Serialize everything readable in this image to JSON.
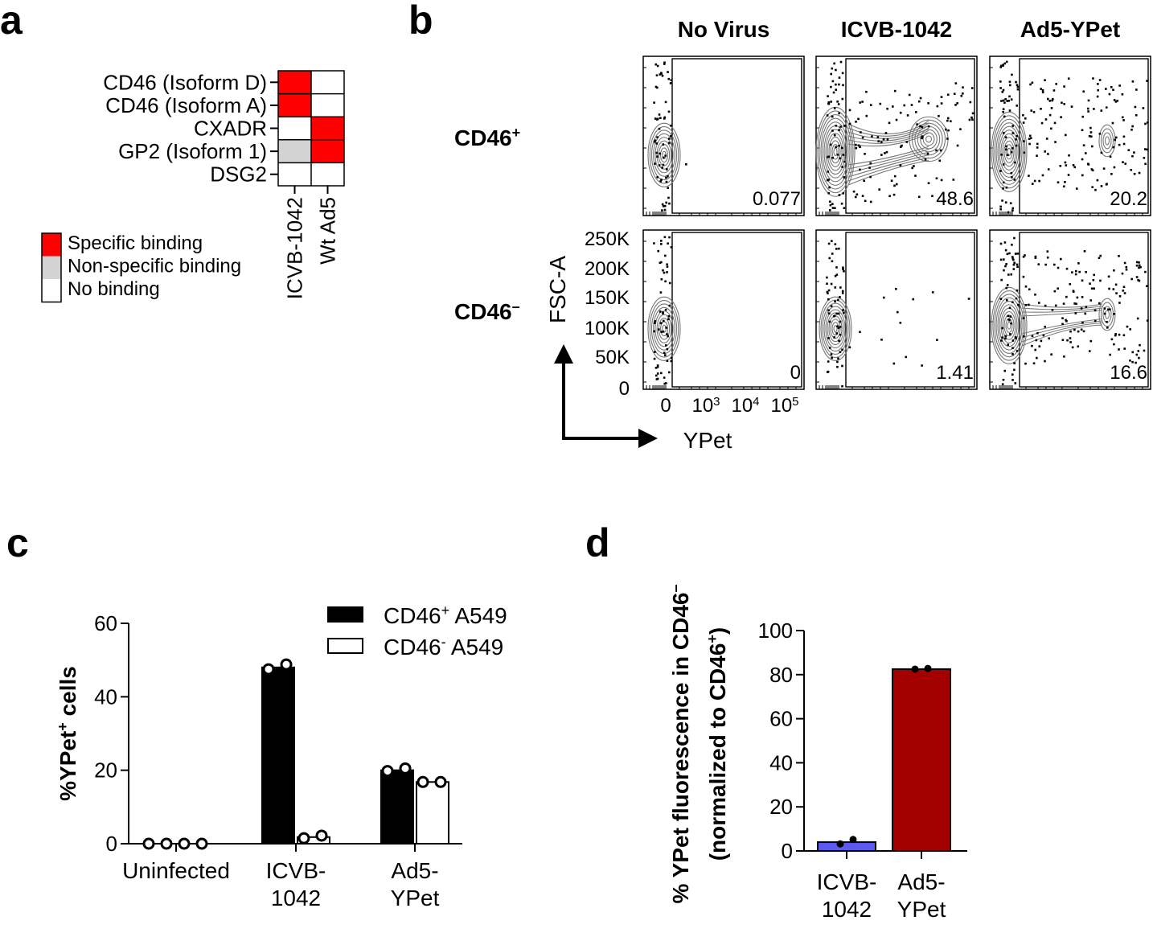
{
  "panel_labels": {
    "a": "a",
    "b": "b",
    "c": "c",
    "d": "d"
  },
  "colors": {
    "specific": "#ff0000",
    "nonspecific": "#d3d3d3",
    "none": "#ffffff",
    "icvb_bar_d": "#5a5aee",
    "ad5_bar_d": "#a50000",
    "contour": "#777777"
  },
  "chart_data": [
    {
      "panel": "a",
      "type": "heatmap",
      "rows": [
        "CD46 (Isoform D)",
        "CD46 (Isoform A)",
        "CXADR",
        "GP2 (Isoform 1)",
        "DSG2"
      ],
      "columns": [
        "ICVB-1042",
        "Wt Ad5"
      ],
      "cells": [
        [
          "specific",
          "none"
        ],
        [
          "specific",
          "none"
        ],
        [
          "none",
          "specific"
        ],
        [
          "nonspecific",
          "specific"
        ],
        [
          "none",
          "none"
        ]
      ],
      "legend": [
        {
          "key": "specific",
          "label": "Specific binding"
        },
        {
          "key": "nonspecific",
          "label": "Non-specific binding"
        },
        {
          "key": "none",
          "label": "No binding"
        }
      ]
    },
    {
      "panel": "b",
      "type": "scatter",
      "columns": [
        "No Virus",
        "ICVB-1042",
        "Ad5-YPet"
      ],
      "rows": [
        {
          "label": "CD46",
          "sup": "+",
          "percentages": [
            "0.077",
            "48.6",
            "20.2"
          ]
        },
        {
          "label": "CD46",
          "sup": "–",
          "percentages": [
            "0",
            "1.41",
            "16.6"
          ]
        }
      ],
      "ylabel": "FSC-A",
      "xlabel": "YPet",
      "yticks": [
        "250K",
        "200K",
        "150K",
        "100K",
        "50K",
        "0"
      ],
      "xticks": [
        {
          "base": "0",
          "exp": ""
        },
        {
          "base": "10",
          "exp": "3"
        },
        {
          "base": "10",
          "exp": "4"
        },
        {
          "base": "10",
          "exp": "5"
        }
      ],
      "ylim": [
        0,
        262144
      ]
    },
    {
      "panel": "c",
      "type": "bar",
      "ylabel": {
        "pre": "%YPet",
        "sup": "+",
        "post": " cells"
      },
      "categories": [
        {
          "line1": "Uninfected",
          "line2": ""
        },
        {
          "line1": "ICVB-",
          "line2": "1042"
        },
        {
          "line1": "Ad5-",
          "line2": "YPet"
        }
      ],
      "ylim": [
        0,
        60
      ],
      "yticks": [
        "0",
        "20",
        "40",
        "60"
      ],
      "series": [
        {
          "name": "CD46",
          "sup": "+",
          "suffix": " A549",
          "fill": "#000000",
          "values": [
            0,
            48,
            20
          ],
          "points": [
            [
              0,
              0
            ],
            [
              47.5,
              48.8
            ],
            [
              19.8,
              20.5
            ]
          ]
        },
        {
          "name": "CD46",
          "sup": "-",
          "suffix": " A549",
          "fill": "#ffffff",
          "values": [
            0,
            1.8,
            16.8
          ],
          "points": [
            [
              0,
              0
            ],
            [
              1.5,
              2.2
            ],
            [
              16.8,
              16.8
            ]
          ]
        }
      ]
    },
    {
      "panel": "d",
      "type": "bar",
      "ylabel": {
        "line1": "% YPet fluorescence in CD46",
        "line1_sup": "–",
        "line2_pre": "(normalized to CD46",
        "line2_sup": "+",
        "line2_post": ")"
      },
      "categories": [
        {
          "line1": "ICVB-",
          "line2": "1042"
        },
        {
          "line1": "Ad5-",
          "line2": "YPet"
        }
      ],
      "values": [
        4,
        82.5
      ],
      "points": [
        [
          3.2,
          5.2
        ],
        [
          82.5,
          82.8
        ]
      ],
      "ylim": [
        0,
        100
      ],
      "yticks": [
        "0",
        "20",
        "40",
        "60",
        "80",
        "100"
      ]
    }
  ]
}
